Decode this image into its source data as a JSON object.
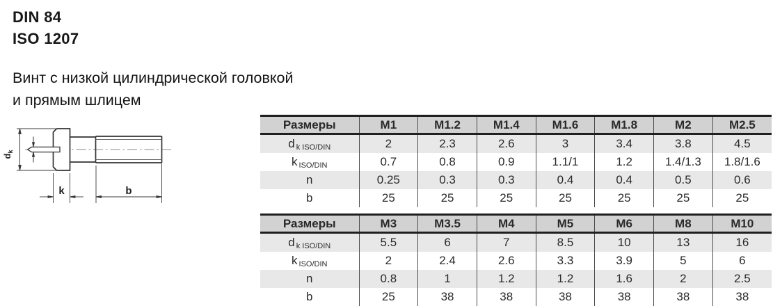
{
  "page": {
    "title_line1": "DIN 84",
    "title_line2": "ISO 1207",
    "subtitle_line1": "Винт с низкой цилиндрической головкой",
    "subtitle_line2": "и прямым шлицем"
  },
  "drawing": {
    "description": "Side view technical drawing of a slotted cheese (low cylindrical) head screw with dimension callouts",
    "labels": {
      "d_main": "d",
      "d_sub": "k",
      "k": "k",
      "b": "b"
    }
  },
  "tables": [
    {
      "header": [
        "Размеры",
        "M1",
        "M1.2",
        "M1.4",
        "M1.6",
        "M1.8",
        "M2",
        "M2.5"
      ],
      "rows": [
        {
          "label_main": "d",
          "label_sub": "k ISO/DIN",
          "values": [
            "2",
            "2.3",
            "2.6",
            "3",
            "3.4",
            "3.8",
            "4.5"
          ]
        },
        {
          "label_main": "k",
          "label_sub": "ISO/DIN",
          "values": [
            "0.7",
            "0.8",
            "0.9",
            "1.1/1",
            "1.2",
            "1.4/1.3",
            "1.8/1.6"
          ]
        },
        {
          "label_main": "n",
          "label_sub": "",
          "values": [
            "0.25",
            "0.3",
            "0.3",
            "0.4",
            "0.4",
            "0.5",
            "0.6"
          ]
        },
        {
          "label_main": "b",
          "label_sub": "",
          "values": [
            "25",
            "25",
            "25",
            "25",
            "25",
            "25",
            "25"
          ]
        }
      ]
    },
    {
      "header": [
        "Размеры",
        "M3",
        "M3.5",
        "M4",
        "M5",
        "M6",
        "M8",
        "M10"
      ],
      "rows": [
        {
          "label_main": "d",
          "label_sub": "k ISO/DIN",
          "values": [
            "5.5",
            "6",
            "7",
            "8.5",
            "10",
            "13",
            "16"
          ]
        },
        {
          "label_main": "k",
          "label_sub": "ISO/DIN",
          "values": [
            "2",
            "2.4",
            "2.6",
            "3.3",
            "3.9",
            "5",
            "6"
          ]
        },
        {
          "label_main": "n",
          "label_sub": "",
          "values": [
            "0.8",
            "1",
            "1.2",
            "1.2",
            "1.6",
            "2",
            "2.5"
          ]
        },
        {
          "label_main": "b",
          "label_sub": "",
          "values": [
            "25",
            "38",
            "38",
            "38",
            "38",
            "38",
            "38"
          ]
        }
      ]
    }
  ],
  "colors": {
    "table_header_bg": "#d2d2d2",
    "row_alt_bg": "#e8e8e8",
    "heavy_border": "#1f1f1f",
    "column_line": "#4a4a4a",
    "text": "#2a2a2a",
    "drawing_line": "#333333"
  }
}
